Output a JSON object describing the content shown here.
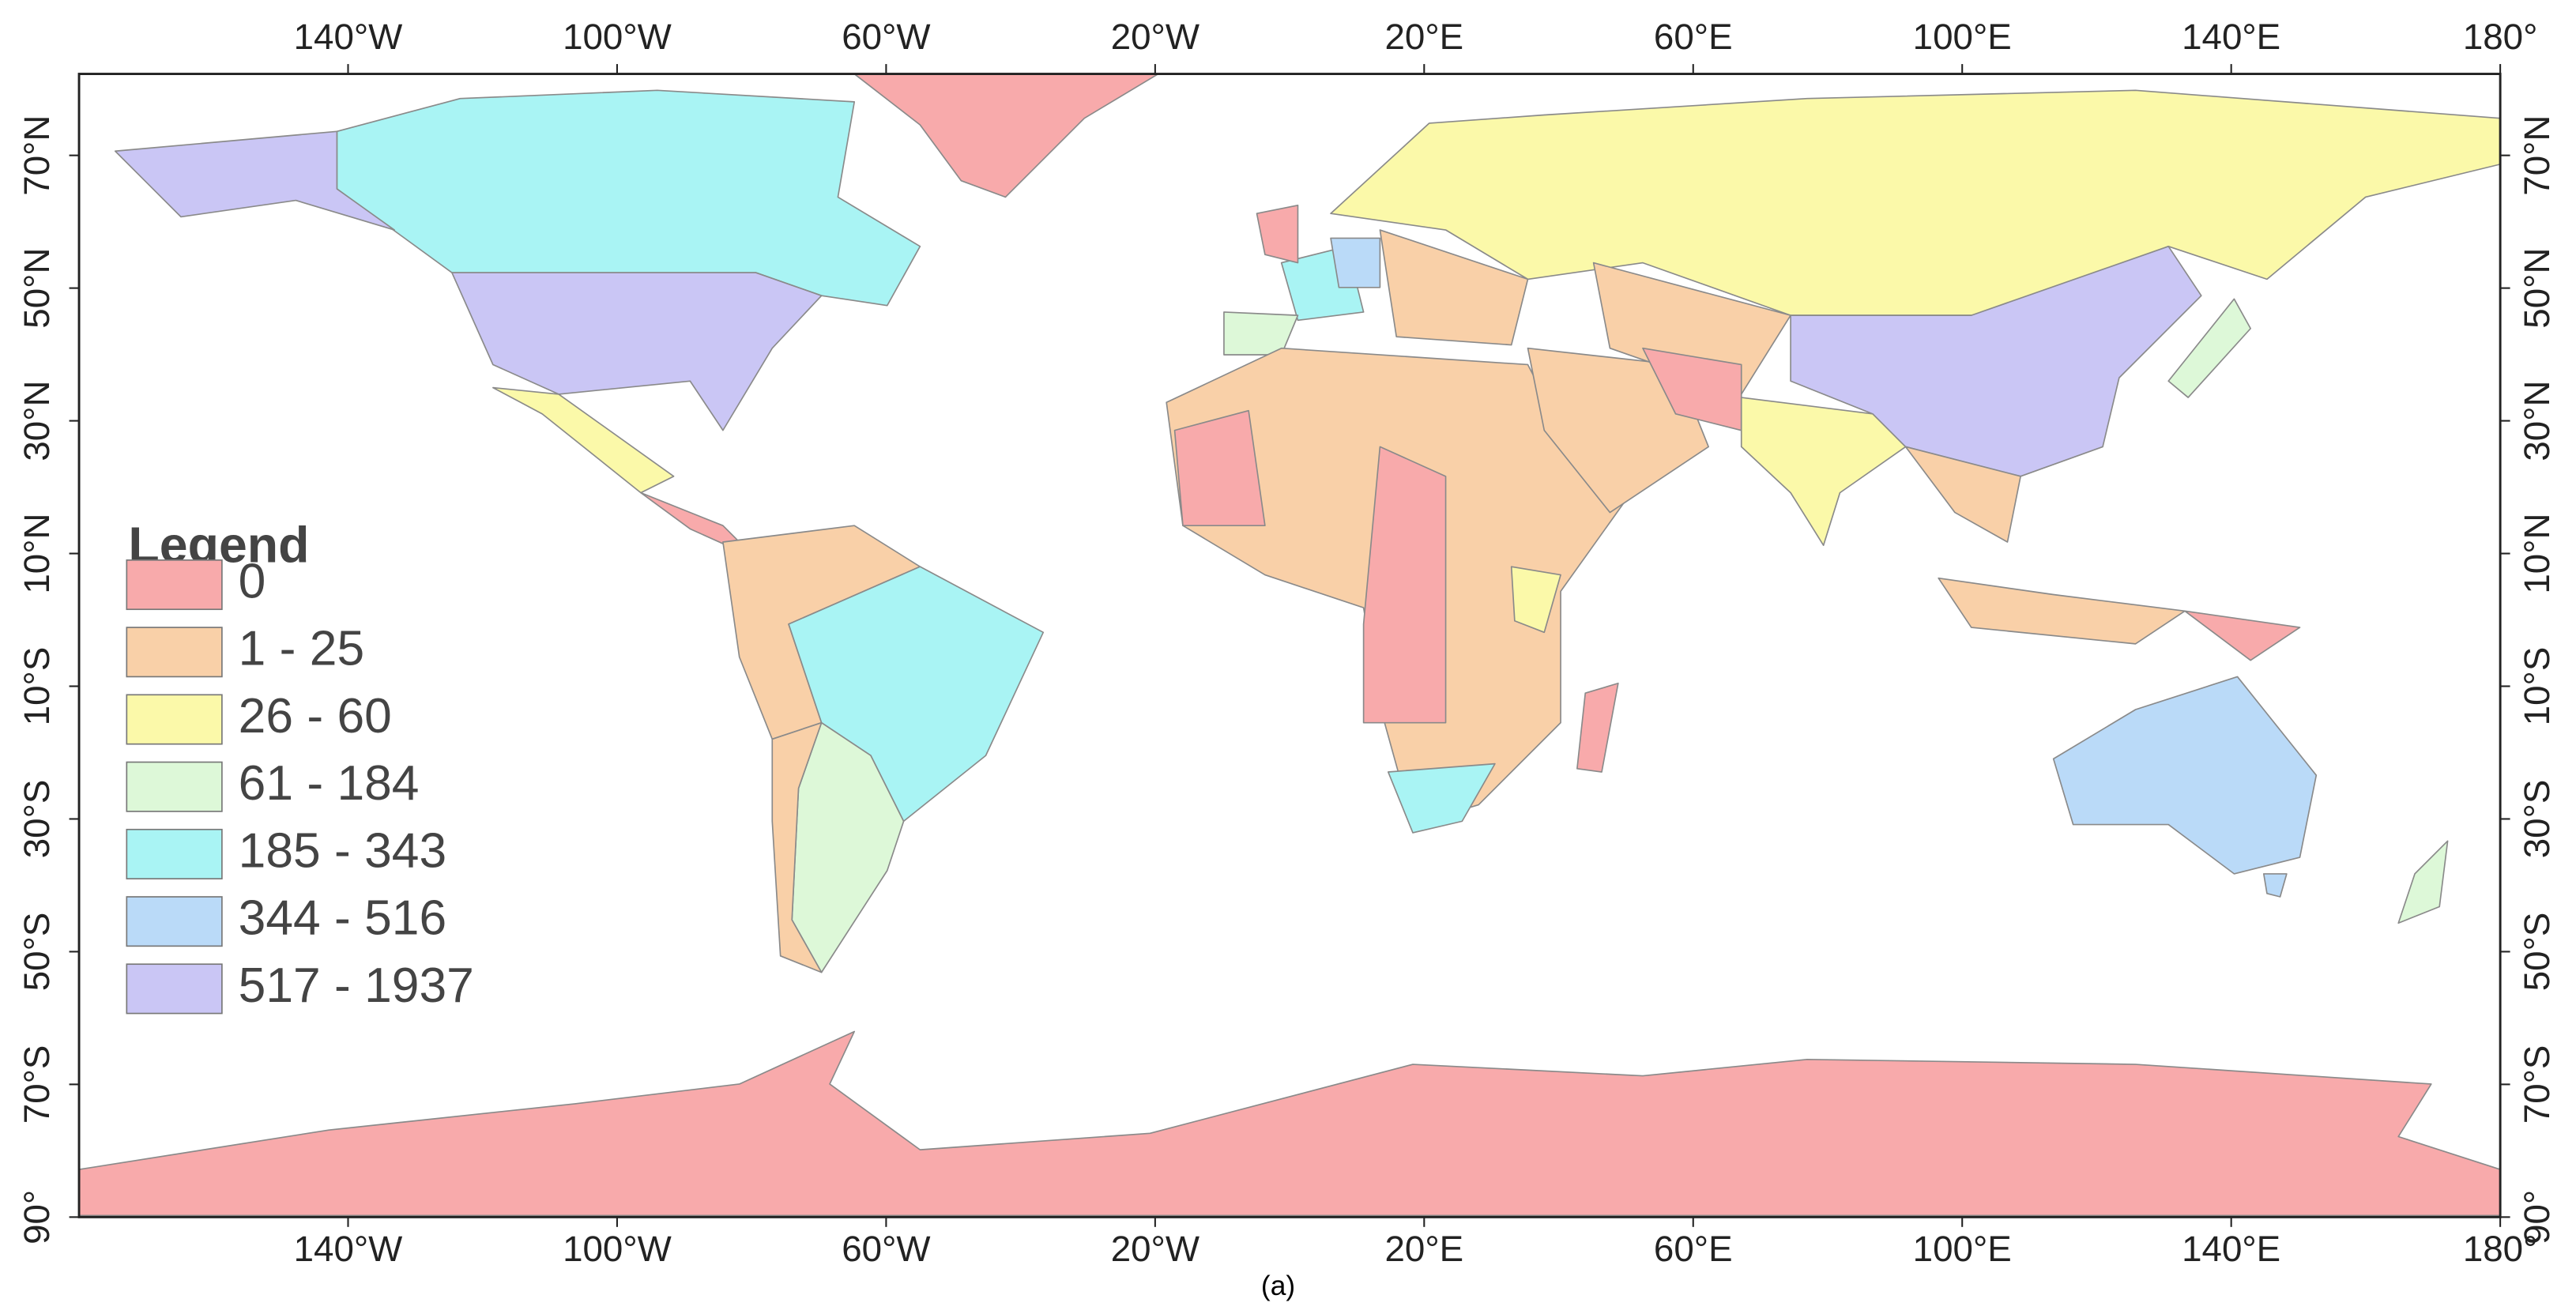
{
  "map": {
    "lon_labels": [
      "140°W",
      "100°W",
      "60°W",
      "20°W",
      "20°E",
      "60°E",
      "100°E",
      "140°E",
      "180°"
    ],
    "lat_labels": [
      "70°N",
      "50°N",
      "30°N",
      "10°N",
      "10°S",
      "30°S",
      "50°S",
      "70°S",
      "90°"
    ],
    "caption": "(a)"
  },
  "legend": {
    "title": "Legend",
    "items": [
      {
        "label": "0",
        "color": "#f8aaab"
      },
      {
        "label": "1 - 25",
        "color": "#f9d0a8"
      },
      {
        "label": "26 - 60",
        "color": "#fbf9a9"
      },
      {
        "label": "61 - 184",
        "color": "#ddf8d8"
      },
      {
        "label": "185 - 343",
        "color": "#a9f4f4"
      },
      {
        "label": "344 - 516",
        "color": "#badaf8"
      },
      {
        "label": "517 - 1937",
        "color": "#cac6f5"
      }
    ]
  }
}
